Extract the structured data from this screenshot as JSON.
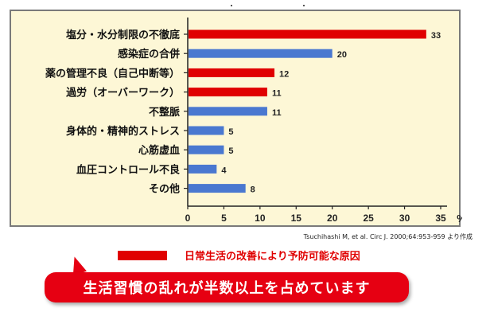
{
  "chart_data": {
    "type": "bar",
    "orientation": "horizontal",
    "categories": [
      "塩分・水分制限の不徹底",
      "感染症の合併",
      "薬の管理不良（自己中断等）",
      "過労（オーバーワーク）",
      "不整脈",
      "身体的・精神的ストレス",
      "心筋虚血",
      "血圧コントロール不良",
      "その他"
    ],
    "values": [
      33,
      20,
      12,
      11,
      11,
      5,
      5,
      4,
      8
    ],
    "value_labels": [
      "33",
      "20",
      "12",
      "11",
      "11",
      "5",
      "5",
      "4",
      "8"
    ],
    "highlighted": [
      true,
      false,
      true,
      true,
      false,
      false,
      false,
      false,
      false
    ],
    "x_ticks": [
      "0",
      "5",
      "10",
      "15",
      "20",
      "25",
      "30",
      "35"
    ],
    "xlim": [
      0,
      35
    ],
    "x_unit": "%",
    "colors": {
      "highlight": "#e00000",
      "normal": "#4a78d0",
      "panel_bg": "#fdf7d6"
    },
    "grid": false
  },
  "source": "Tsuchihashi M, et al. Circ J. 2000;64:953-959 より作成",
  "legend": {
    "label": "日常生活の改善により予防可能な原因"
  },
  "callout": {
    "text": "生活習慣の乱れが半数以上を占めています"
  }
}
